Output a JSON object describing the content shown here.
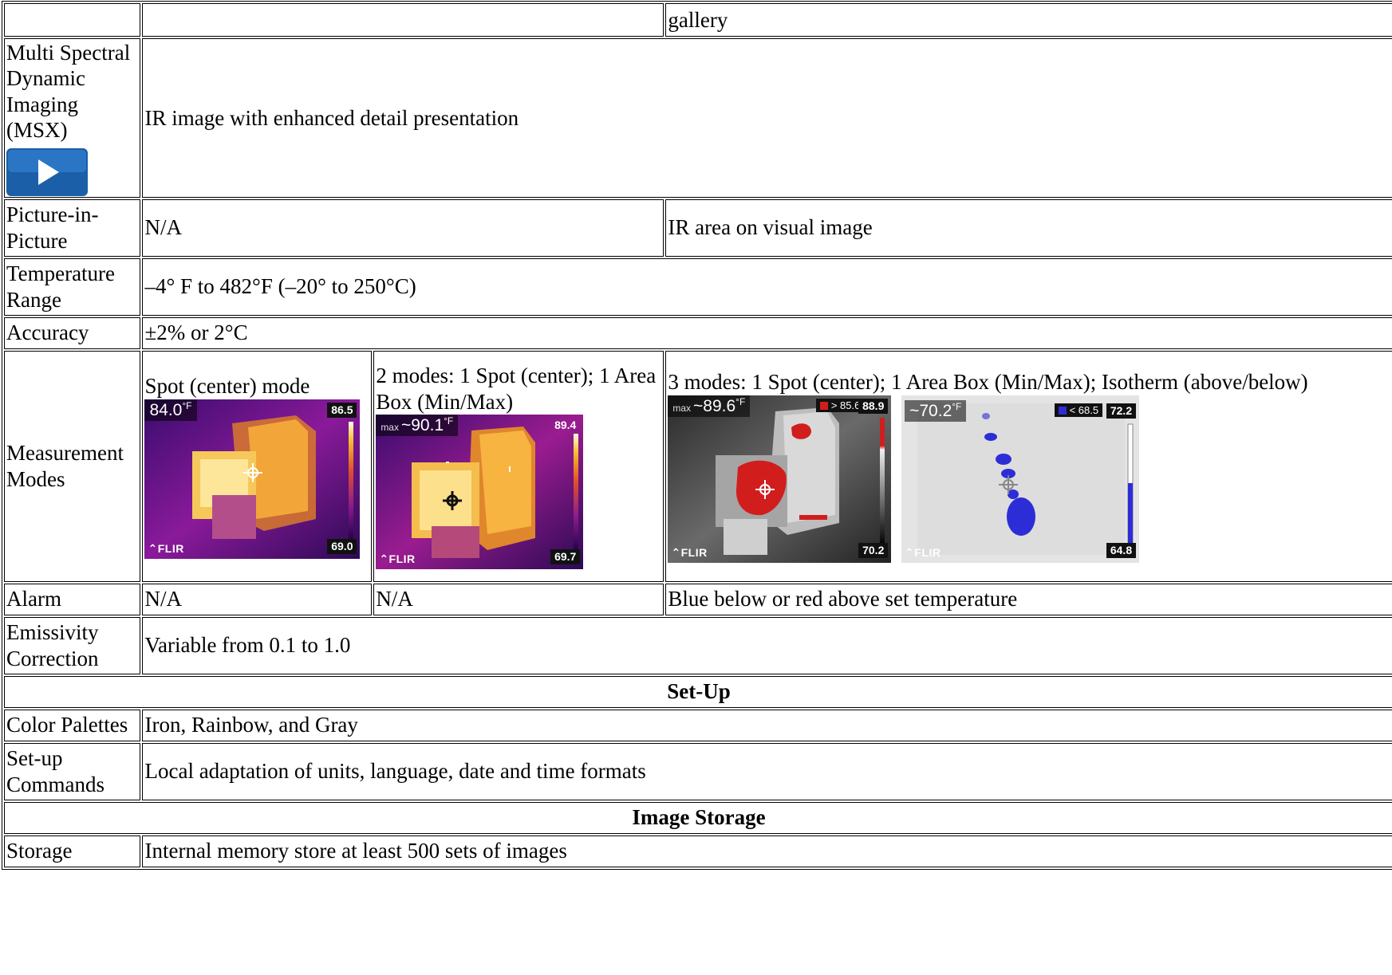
{
  "header": {
    "gallery": "gallery"
  },
  "msx": {
    "label": "Multi Spectral Dynamic Imaging (MSX)",
    "value": "IR image with enhanced detail presentation"
  },
  "pip": {
    "label": "Picture-in-Picture",
    "value_left": "N/A",
    "value_right": "IR area on visual image"
  },
  "temp_range": {
    "label": "Temperature Range",
    "value": "–4° F to 482°F (–20° to 250°C)"
  },
  "accuracy": {
    "label": "Accuracy",
    "value": "±2% or 2°C"
  },
  "measurement": {
    "label": "Measurement Modes",
    "mode1": "Spot (center) mode",
    "mode2": "2 modes: 1 Spot (center); 1 Area Box (Min/Max)",
    "mode3": "3 modes: 1 Spot (center); 1 Area Box (Min/Max); Isotherm (above/below)",
    "thumbs": {
      "t1": {
        "temp": "84.0",
        "unit": "°F",
        "max": "86.5",
        "min": "69.0",
        "brand": "FLIR"
      },
      "t2": {
        "prefix": "max",
        "temp": "~90.1",
        "unit": "°F",
        "max": "89.4",
        "min": "69.7",
        "brand": "FLIR"
      },
      "t3": {
        "prefix": "max",
        "temp": "~89.6",
        "unit": "°F",
        "iso": "> 85.6",
        "max": "88.9",
        "min": "70.2",
        "brand": "FLIR"
      },
      "t4": {
        "temp": "~70.2",
        "unit": "°F",
        "iso": "< 68.5",
        "max": "72.2",
        "min": "64.8",
        "brand": "FLIR"
      }
    }
  },
  "alarm": {
    "label": "Alarm",
    "v1": "N/A",
    "v2": "N/A",
    "v3": "Blue below or red above set temperature"
  },
  "emissivity": {
    "label": "Emissivity Correction",
    "value": "Variable from 0.1 to 1.0"
  },
  "setup_section": {
    "title": "Set-Up"
  },
  "palettes": {
    "label": "Color Palettes",
    "value": "Iron, Rainbow, and Gray"
  },
  "setup_commands": {
    "label": "Set-up Commands",
    "value": "Local adaptation of units, language, date and time formats"
  },
  "storage_section": {
    "title": "Image Storage"
  },
  "storage": {
    "label": "Storage",
    "value": "Internal memory store at least 500 sets of images"
  },
  "colors": {
    "play_button": "#1b5fa8",
    "border": "#000000"
  },
  "icons": {
    "play": "play-icon"
  }
}
